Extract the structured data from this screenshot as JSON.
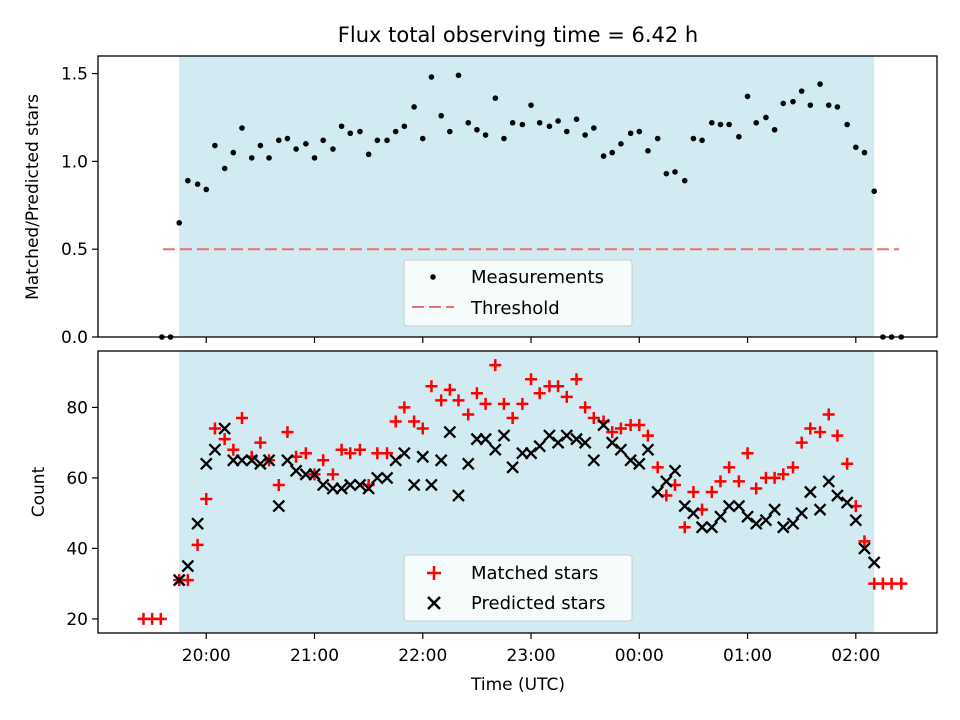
{
  "chart_data": [
    {
      "type": "scatter",
      "title": "Flux total observing time = 6.42 h",
      "xlabel": "",
      "ylabel": "Matched/Predicted stars",
      "xlim_hours": [
        19.0,
        26.75
      ],
      "ylim": [
        0,
        1.6
      ],
      "yticks": [
        0.0,
        0.5,
        1.0,
        1.5
      ],
      "ytick_labels": [
        "0.0",
        "0.5",
        "1.0",
        "1.5"
      ],
      "shaded_interval_hours": [
        19.75,
        26.17
      ],
      "threshold": {
        "value": 0.5,
        "x_range_hours": [
          19.6,
          26.4
        ]
      },
      "legend": {
        "placement": "lower center",
        "entries": [
          "Measurements",
          "Threshold"
        ]
      },
      "series": [
        {
          "name": "Measurements",
          "x": [
            19.59,
            19.67,
            19.75,
            19.83,
            19.92,
            20.0,
            20.08,
            20.17,
            20.25,
            20.33,
            20.42,
            20.5,
            20.58,
            20.67,
            20.75,
            20.83,
            20.92,
            21.0,
            21.08,
            21.17,
            21.25,
            21.33,
            21.42,
            21.5,
            21.58,
            21.67,
            21.75,
            21.83,
            21.92,
            22.0,
            22.08,
            22.17,
            22.25,
            22.33,
            22.42,
            22.5,
            22.58,
            22.67,
            22.75,
            22.83,
            22.92,
            23.0,
            23.08,
            23.17,
            23.25,
            23.33,
            23.42,
            23.5,
            23.58,
            23.67,
            23.75,
            23.83,
            23.92,
            24.0,
            24.08,
            24.17,
            24.25,
            24.33,
            24.42,
            24.5,
            24.58,
            24.67,
            24.75,
            24.83,
            24.92,
            25.0,
            25.08,
            25.17,
            25.25,
            25.33,
            25.42,
            25.5,
            25.58,
            25.67,
            25.75,
            25.83,
            25.92,
            26.0,
            26.08,
            26.17,
            26.25,
            26.33,
            26.42
          ],
          "y": [
            0.0,
            0.0,
            0.65,
            0.89,
            0.87,
            0.84,
            1.09,
            0.96,
            1.05,
            1.19,
            1.02,
            1.09,
            1.02,
            1.12,
            1.13,
            1.07,
            1.1,
            1.02,
            1.12,
            1.07,
            1.2,
            1.16,
            1.17,
            1.04,
            1.12,
            1.12,
            1.17,
            1.2,
            1.31,
            1.13,
            1.48,
            1.26,
            1.17,
            1.49,
            1.22,
            1.18,
            1.15,
            1.36,
            1.13,
            1.22,
            1.21,
            1.32,
            1.22,
            1.2,
            1.23,
            1.17,
            1.24,
            1.15,
            1.19,
            1.03,
            1.05,
            1.1,
            1.16,
            1.17,
            1.06,
            1.13,
            0.93,
            0.94,
            0.89,
            1.13,
            1.12,
            1.22,
            1.21,
            1.21,
            1.14,
            1.37,
            1.22,
            1.25,
            1.18,
            1.33,
            1.34,
            1.4,
            1.32,
            1.44,
            1.32,
            1.31,
            1.21,
            1.08,
            1.05,
            0.83,
            0.0,
            0.0,
            0.0
          ]
        }
      ]
    },
    {
      "type": "scatter",
      "title": "",
      "xlabel": "Time (UTC)",
      "ylabel": "Count",
      "xlim_hours": [
        19.0,
        26.75
      ],
      "ylim": [
        16,
        96
      ],
      "yticks": [
        20,
        40,
        60,
        80
      ],
      "ytick_labels": [
        "20",
        "40",
        "60",
        "80"
      ],
      "xticks_hours": [
        20,
        21,
        22,
        23,
        24,
        25,
        26
      ],
      "xtick_labels": [
        "20:00",
        "21:00",
        "22:00",
        "23:00",
        "00:00",
        "01:00",
        "02:00"
      ],
      "shaded_interval_hours": [
        19.75,
        26.17
      ],
      "legend": {
        "placement": "lower center",
        "entries": [
          "Matched stars",
          "Predicted stars"
        ]
      },
      "series": [
        {
          "name": "Matched stars",
          "x": [
            19.42,
            19.5,
            19.58,
            19.75,
            19.83,
            19.92,
            20.0,
            20.08,
            20.17,
            20.25,
            20.33,
            20.42,
            20.5,
            20.58,
            20.67,
            20.75,
            20.83,
            20.92,
            21.0,
            21.08,
            21.17,
            21.25,
            21.33,
            21.42,
            21.5,
            21.58,
            21.67,
            21.75,
            21.83,
            21.92,
            22.0,
            22.08,
            22.17,
            22.25,
            22.33,
            22.42,
            22.5,
            22.58,
            22.67,
            22.75,
            22.83,
            22.92,
            23.0,
            23.08,
            23.17,
            23.25,
            23.33,
            23.42,
            23.5,
            23.58,
            23.67,
            23.75,
            23.83,
            23.92,
            24.0,
            24.08,
            24.17,
            24.25,
            24.33,
            24.42,
            24.5,
            24.58,
            24.67,
            24.75,
            24.83,
            24.92,
            25.0,
            25.08,
            25.17,
            25.25,
            25.33,
            25.42,
            25.5,
            25.58,
            25.67,
            25.75,
            25.83,
            25.92,
            26.0,
            26.08,
            26.17,
            26.25,
            26.33,
            26.42
          ],
          "y": [
            20,
            20,
            20,
            31,
            31,
            41,
            54,
            74,
            71,
            68,
            77,
            66,
            70,
            65,
            58,
            73,
            66,
            67,
            61,
            65,
            61,
            68,
            67,
            68,
            58,
            67,
            67,
            76,
            80,
            76,
            74,
            86,
            82,
            85,
            82,
            78,
            84,
            81,
            92,
            81,
            77,
            81,
            88,
            84,
            86,
            86,
            83,
            88,
            80,
            77,
            76,
            73,
            74,
            75,
            75,
            72,
            63,
            55,
            58,
            46,
            56,
            51,
            56,
            59,
            63,
            59,
            67,
            57,
            60,
            60,
            61,
            63,
            70,
            74,
            73,
            78,
            72,
            64,
            52,
            42,
            30,
            30,
            30,
            30
          ]
        },
        {
          "name": "Predicted stars",
          "x": [
            19.75,
            19.83,
            19.92,
            20.0,
            20.08,
            20.17,
            20.25,
            20.33,
            20.42,
            20.5,
            20.58,
            20.67,
            20.75,
            20.83,
            20.92,
            21.0,
            21.08,
            21.17,
            21.25,
            21.33,
            21.42,
            21.5,
            21.58,
            21.67,
            21.75,
            21.83,
            21.92,
            22.0,
            22.08,
            22.17,
            22.25,
            22.33,
            22.42,
            22.5,
            22.58,
            22.67,
            22.75,
            22.83,
            22.92,
            23.0,
            23.08,
            23.17,
            23.25,
            23.33,
            23.42,
            23.5,
            23.58,
            23.67,
            23.75,
            23.83,
            23.92,
            24.0,
            24.08,
            24.17,
            24.25,
            24.33,
            24.42,
            24.5,
            24.58,
            24.67,
            24.75,
            24.83,
            24.92,
            25.0,
            25.08,
            25.17,
            25.25,
            25.33,
            25.42,
            25.5,
            25.58,
            25.67,
            25.75,
            25.83,
            25.92,
            26.0,
            26.08,
            26.17
          ],
          "y": [
            31,
            35,
            47,
            64,
            68,
            74,
            65,
            65,
            65,
            64,
            65,
            52,
            65,
            62,
            61,
            61,
            58,
            57,
            57,
            58,
            58,
            57,
            60,
            60,
            65,
            67,
            58,
            66,
            58,
            65,
            73,
            55,
            64,
            71,
            71,
            68,
            72,
            63,
            67,
            67,
            69,
            72,
            70,
            72,
            71,
            70,
            65,
            75,
            70,
            68,
            65,
            64,
            68,
            56,
            59,
            62,
            52,
            50,
            46,
            46,
            49,
            52,
            52,
            49,
            47,
            48,
            51,
            46,
            47,
            50,
            56,
            51,
            59,
            55,
            53,
            48,
            40,
            36
          ]
        }
      ]
    }
  ]
}
